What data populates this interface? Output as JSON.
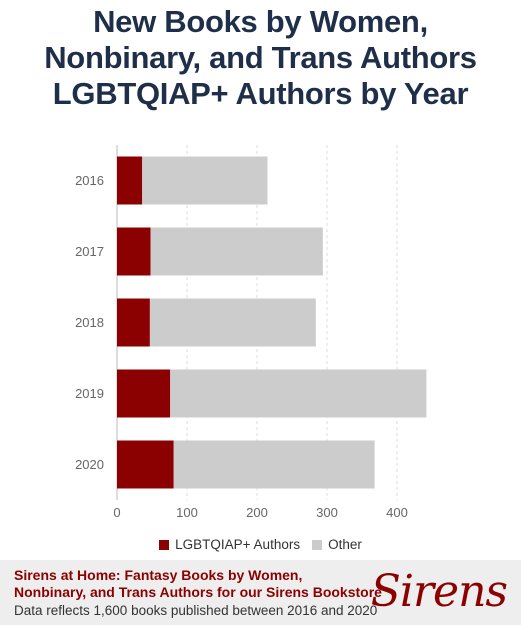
{
  "header": {
    "title_lines": [
      "New Books by Women,",
      "Nonbinary, and Trans Authors",
      "LGBTQIAP+ Authors by Year"
    ]
  },
  "chart_data": {
    "type": "bar",
    "orientation": "horizontal",
    "stacked": true,
    "categories": [
      "2016",
      "2017",
      "2018",
      "2019",
      "2020"
    ],
    "series": [
      {
        "name": "LGBTQIAP+ Authors",
        "values": [
          36,
          48,
          47,
          76,
          81
        ],
        "color": "#8b0000"
      },
      {
        "name": "Other",
        "values": [
          179,
          246,
          237,
          366,
          287
        ],
        "color": "#cccccc"
      }
    ],
    "xlim": [
      0,
      450
    ],
    "xticks": [
      0,
      100,
      200,
      300,
      400
    ],
    "grid": true,
    "legend": "bottom"
  },
  "footer": {
    "title_line1": "Sirens at Home: Fantasy Books by Women,",
    "title_line2": "Nonbinary, and Trans Authors for our Sirens Bookstore",
    "note": "Data reflects 1,600 books published between 2016 and 2020",
    "logo_text": "Sirens"
  }
}
